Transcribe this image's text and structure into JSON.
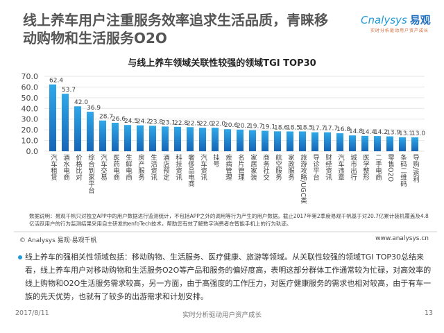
{
  "slide": {
    "title": "线上养车用户注重服务效率追求生活品质，青睐移动购物和生活服务O2O",
    "logo": {
      "en": "Cnalysys",
      "cn": "易观",
      "tagline": "实时分析驱动用户资产成长"
    },
    "note": "数据说明：易观千帆只对独立APP中的用户数据进行监测统计，不包括APP之外的调用等行为产生的用户数据。截止2017年第2季度易观千帆基于对20.7亿累计装机覆盖及4.8亿活跃用户的行为监测结果采用自主研发的enfoTech技术，帮助您有效了解数字消费者在智能手机上的行为轨迹。",
    "source": "© Analysys 易观·易观千帆",
    "website": "www.analysys.cn",
    "description": "线上养车的强相关性领域包括：移动购物、生活服务、医疗健康、旅游等领域。从关联性较强的领域TGI TOP30总结来看，线上养车用户对移动购物和生活服务O2O等产品和服务的偏好度高，表明这部分群体工作通常较为忙碌，对高效率的线上购物和O2O生活服务需求较高，另一方面，由于高强度的工作压力，对医疗健康服务的需求也相对较高，由于有车一族的先天优势，也就有了较多的出游需求和计划安排。",
    "footer": {
      "date": "2017/8/11",
      "center": "实时分析驱动用户资产成长",
      "page": "13"
    }
  },
  "chart_data": {
    "type": "bar",
    "title": "与线上养车领域关联性较强的领域TGI TOP30",
    "categories": [
      "汽车租赁",
      "酒水电商",
      "价格比对",
      "综合到家平台",
      "汽车交易",
      "医药电商",
      "生鲜电商",
      "房产服务",
      "生活资讯",
      "酒店预定",
      "科技资讯",
      "奢侈品电商",
      "汽车资讯",
      "挂号",
      "疾病管理",
      "名片管理",
      "家居家装",
      "商务社交",
      "航空服务",
      "家政服务",
      "旅游攻略/UGC类",
      "导诊平台",
      "财经资讯",
      "汽车违章",
      "城市出行",
      "医学整形",
      "二手电商",
      "零售O2O",
      "条码二维码",
      "导购/返利"
    ],
    "values": [
      62.4,
      53.7,
      42.0,
      36.9,
      28.7,
      26.6,
      24.5,
      24.2,
      23.8,
      23.1,
      22.8,
      22.5,
      22.0,
      22.0,
      20.6,
      20.2,
      19.7,
      19.1,
      18.6,
      18.5,
      18.5,
      17.7,
      17.7,
      16.8,
      14.8,
      14.4,
      14.2,
      13.9,
      13.1,
      13.0
    ],
    "ylim": [
      0,
      70
    ],
    "yticks": [
      "0.0",
      "10.0",
      "20.0",
      "30.0",
      "40.0",
      "50.0",
      "60.0",
      "70.0"
    ],
    "grid": true,
    "colors": {
      "bar_top": "#2fa8e8",
      "bar_bottom": "#1565b8"
    }
  }
}
